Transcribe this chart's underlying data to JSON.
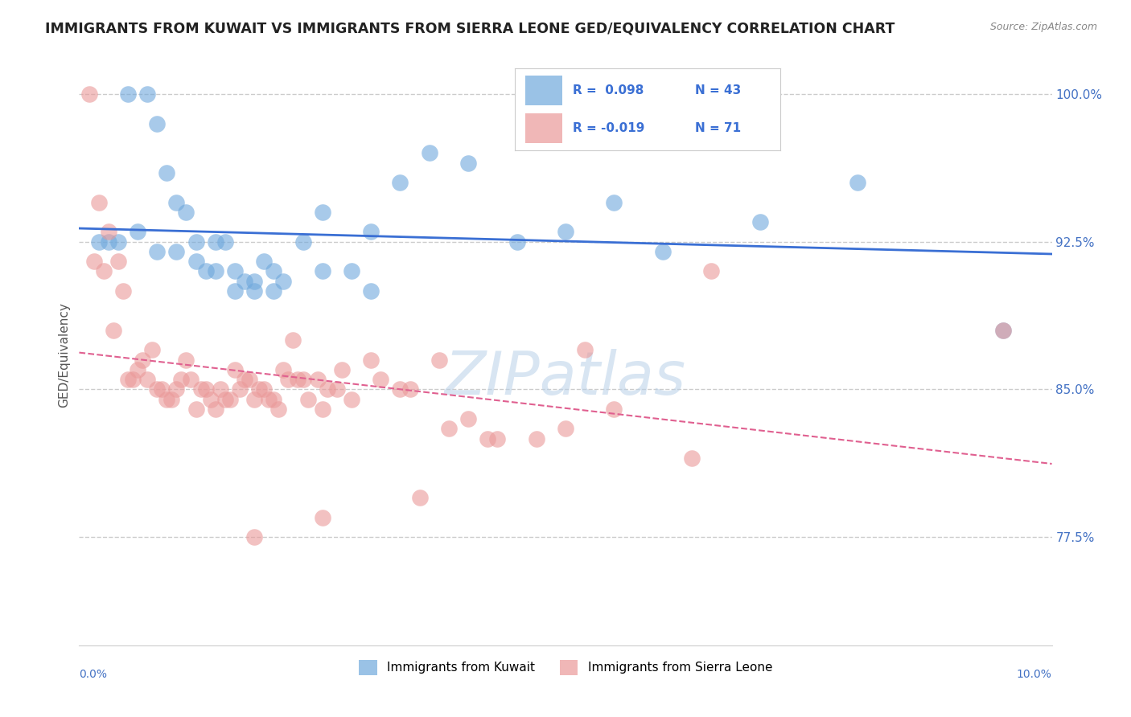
{
  "title": "IMMIGRANTS FROM KUWAIT VS IMMIGRANTS FROM SIERRA LEONE GED/EQUIVALENCY CORRELATION CHART",
  "source": "Source: ZipAtlas.com",
  "ylabel": "GED/Equivalency",
  "xlim": [
    0.0,
    10.0
  ],
  "ylim": [
    72.0,
    101.5
  ],
  "yticks": [
    77.5,
    85.0,
    92.5,
    100.0
  ],
  "ytick_labels": [
    "77.5%",
    "85.0%",
    "92.5%",
    "100.0%"
  ],
  "xticks": [
    0.0,
    2.0,
    4.0,
    6.0,
    8.0,
    10.0
  ],
  "kuwait_color": "#6fa8dc",
  "sierra_color": "#ea9999",
  "kuwait_line_color": "#3a6fd4",
  "sierra_line_color": "#e06090",
  "background_color": "#ffffff",
  "grid_color": "#cccccc",
  "title_color": "#222222",
  "axis_label_color": "#555555",
  "right_axis_color": "#4472c4",
  "watermark_color": "#b8d0e8",
  "legend_text_color": "#3a6fd4",
  "kuwait_x": [
    0.3,
    0.5,
    0.7,
    0.8,
    0.9,
    1.0,
    1.1,
    1.2,
    1.3,
    1.4,
    1.5,
    1.6,
    1.7,
    1.8,
    1.9,
    2.0,
    2.1,
    2.3,
    2.5,
    2.8,
    3.0,
    3.3,
    3.6,
    4.0,
    4.5,
    5.0,
    5.5,
    6.0,
    7.0,
    8.0,
    9.5,
    0.2,
    0.4,
    0.6,
    0.8,
    1.0,
    1.2,
    1.4,
    1.6,
    1.8,
    2.0,
    2.5,
    3.0
  ],
  "kuwait_y": [
    92.5,
    100.0,
    100.0,
    98.5,
    96.0,
    94.5,
    94.0,
    92.5,
    91.0,
    92.5,
    92.5,
    91.0,
    90.5,
    90.0,
    91.5,
    91.0,
    90.5,
    92.5,
    94.0,
    91.0,
    90.0,
    95.5,
    97.0,
    96.5,
    92.5,
    93.0,
    94.5,
    92.0,
    93.5,
    95.5,
    88.0,
    92.5,
    92.5,
    93.0,
    92.0,
    92.0,
    91.5,
    91.0,
    90.0,
    90.5,
    90.0,
    91.0,
    93.0
  ],
  "sierra_x": [
    0.1,
    0.2,
    0.3,
    0.4,
    0.5,
    0.6,
    0.7,
    0.8,
    0.9,
    1.0,
    1.1,
    1.2,
    1.3,
    1.4,
    1.5,
    1.6,
    1.7,
    1.8,
    1.9,
    2.0,
    2.1,
    2.2,
    2.3,
    2.5,
    2.7,
    3.0,
    3.3,
    3.7,
    4.0,
    4.3,
    4.7,
    5.5,
    6.5,
    0.15,
    0.25,
    0.35,
    0.45,
    0.55,
    0.65,
    0.75,
    0.85,
    0.95,
    1.05,
    1.15,
    1.25,
    1.35,
    1.45,
    1.55,
    1.65,
    1.75,
    1.85,
    1.95,
    2.05,
    2.15,
    2.25,
    2.35,
    2.45,
    2.55,
    2.65,
    2.8,
    3.1,
    3.4,
    3.8,
    4.2,
    5.0,
    6.3,
    1.8,
    2.5,
    3.5,
    5.2,
    9.5
  ],
  "sierra_y": [
    100.0,
    94.5,
    93.0,
    91.5,
    85.5,
    86.0,
    85.5,
    85.0,
    84.5,
    85.0,
    86.5,
    84.0,
    85.0,
    84.0,
    84.5,
    86.0,
    85.5,
    84.5,
    85.0,
    84.5,
    86.0,
    87.5,
    85.5,
    84.0,
    86.0,
    86.5,
    85.0,
    86.5,
    83.5,
    82.5,
    82.5,
    84.0,
    91.0,
    91.5,
    91.0,
    88.0,
    90.0,
    85.5,
    86.5,
    87.0,
    85.0,
    84.5,
    85.5,
    85.5,
    85.0,
    84.5,
    85.0,
    84.5,
    85.0,
    85.5,
    85.0,
    84.5,
    84.0,
    85.5,
    85.5,
    84.5,
    85.5,
    85.0,
    85.0,
    84.5,
    85.5,
    85.0,
    83.0,
    82.5,
    83.0,
    81.5,
    77.5,
    78.5,
    79.5,
    87.0,
    88.0
  ],
  "legend_entries": [
    {
      "R": "R =  0.098",
      "N": "N = 43"
    },
    {
      "R": "R = -0.019",
      "N": "N = 71"
    }
  ],
  "bottom_legend": [
    "Immigrants from Kuwait",
    "Immigrants from Sierra Leone"
  ]
}
